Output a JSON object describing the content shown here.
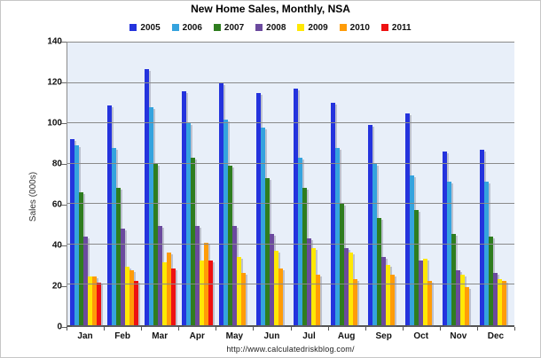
{
  "chart_data": {
    "type": "bar",
    "title": "New Home Sales, Monthly, NSA",
    "ylabel": "Sales (000s)",
    "xlabel": "",
    "footer_url": "http://www.calculatedriskblog.com/",
    "ylim": [
      0,
      140
    ],
    "ytick_step": 20,
    "grid": true,
    "legend_position": "top-center",
    "plot_bg_color": "#e8eff9",
    "gridline_color": "#8a8a8a",
    "categories": [
      "Jan",
      "Feb",
      "Mar",
      "Apr",
      "May",
      "Jun",
      "Jul",
      "Aug",
      "Sep",
      "Oct",
      "Nov",
      "Dec"
    ],
    "series": [
      {
        "name": "2005",
        "color": "#2433dd",
        "values": [
          92,
          109,
          127,
          116,
          120,
          115,
          117,
          110,
          99,
          105,
          86,
          87
        ]
      },
      {
        "name": "2006",
        "color": "#35a3de",
        "values": [
          89,
          88,
          108,
          100,
          102,
          98,
          83,
          88,
          80,
          74,
          71,
          71
        ]
      },
      {
        "name": "2007",
        "color": "#2f7d1f",
        "values": [
          66,
          68,
          80,
          83,
          79,
          73,
          68,
          60,
          53,
          57,
          45,
          44
        ]
      },
      {
        "name": "2008",
        "color": "#6b4a9e",
        "values": [
          44,
          48,
          49,
          49,
          49,
          45,
          43,
          38,
          34,
          32,
          27,
          26
        ]
      },
      {
        "name": "2009",
        "color": "#ffe805",
        "values": [
          24,
          29,
          31,
          32,
          34,
          37,
          38,
          36,
          30,
          33,
          25,
          23
        ]
      },
      {
        "name": "2010",
        "color": "#ff9c08",
        "values": [
          24,
          27,
          36,
          41,
          26,
          28,
          25,
          23,
          25,
          22,
          19,
          22
        ]
      },
      {
        "name": "2011",
        "color": "#ee1111",
        "values": [
          21,
          22,
          28,
          32,
          null,
          null,
          null,
          null,
          null,
          null,
          null,
          null
        ]
      }
    ]
  }
}
